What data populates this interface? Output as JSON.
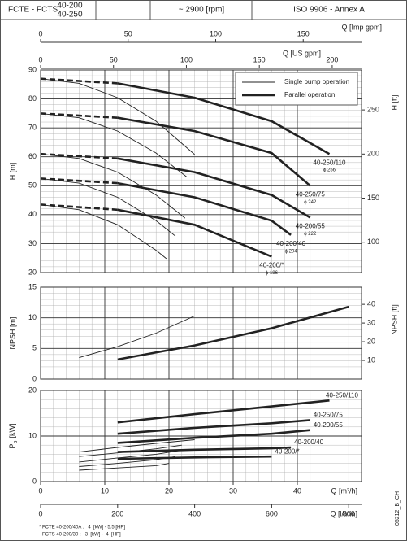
{
  "header": {
    "model": "FCTE - FCTS",
    "sizes": [
      "40-200",
      "40-250"
    ],
    "speed": "~ 2900 [rpm]",
    "standard": "ISO 9906 - Annex A"
  },
  "x_axes": [
    {
      "label": "Q [Imp gpm]",
      "xlim": [
        0,
        183.3
      ],
      "xticks": [
        0,
        50,
        100,
        150
      ],
      "position": "top"
    },
    {
      "label": "Q [US gpm]",
      "xlim": [
        0,
        220.1
      ],
      "xticks": [
        0,
        50,
        100,
        150,
        200
      ],
      "position": "top"
    },
    {
      "label": "Q [m³/h]",
      "xlim": [
        0,
        50
      ],
      "xticks": [
        0,
        10,
        20,
        30,
        40
      ],
      "position": "bottom",
      "grid": true,
      "minor_step": 2
    },
    {
      "label": "Q [l/min]",
      "xlim": [
        0,
        833.3
      ],
      "xticks": [
        0,
        200,
        400,
        600,
        800
      ],
      "position": "bottom"
    }
  ],
  "chart_data": [
    {
      "type": "line",
      "y_label": "H [m]",
      "ylim": [
        20,
        90
      ],
      "yticks": [
        20,
        30,
        40,
        50,
        60,
        70,
        80,
        90
      ],
      "minor_step": 2,
      "y2_label": "H [ft]",
      "y2lim": [
        65.6,
        295.3
      ],
      "y2ticks": [
        100,
        150,
        200,
        250
      ],
      "dashed_to": 12,
      "legend": [
        {
          "name": "Single pump operation",
          "style": "thin"
        },
        {
          "name": "Parallel operation",
          "style": "thick"
        }
      ],
      "series": [
        {
          "style": "thin",
          "x": [
            0,
            6,
            12,
            18,
            24
          ],
          "values": [
            87,
            85.4,
            80.4,
            72.3,
            60.8
          ]
        },
        {
          "style": "thin",
          "x": [
            0,
            6,
            12,
            18,
            22.8
          ],
          "values": [
            75,
            73.5,
            68.9,
            61.3,
            53
          ]
        },
        {
          "style": "thin",
          "x": [
            0,
            6,
            12,
            18,
            22.5
          ],
          "values": [
            61,
            59.4,
            54.7,
            46.8,
            38.8
          ]
        },
        {
          "style": "thin",
          "x": [
            0,
            6,
            12,
            18,
            21
          ],
          "values": [
            52.5,
            50.9,
            46,
            37.9,
            32.6
          ]
        },
        {
          "style": "thin",
          "x": [
            0,
            6,
            12,
            18,
            19.6
          ],
          "values": [
            43.5,
            41.7,
            36.5,
            27.7,
            24.8
          ]
        },
        {
          "style": "thick",
          "label": "40-250/110",
          "sub": "ϕ 256",
          "x": [
            0,
            12,
            24,
            36,
            45
          ],
          "values": [
            87,
            85.4,
            80.4,
            72.3,
            61
          ]
        },
        {
          "style": "thick",
          "label": "40-250/75",
          "sub": "ϕ 242",
          "x": [
            0,
            12,
            24,
            36,
            42
          ],
          "values": [
            75,
            73.5,
            68.9,
            61.3,
            50
          ]
        },
        {
          "style": "thick",
          "label": "40-200/55",
          "sub": "ϕ 222",
          "x": [
            0,
            12,
            24,
            36,
            42
          ],
          "values": [
            61,
            59.4,
            54.7,
            46.8,
            39
          ]
        },
        {
          "style": "thick",
          "label": "40-200/40",
          "sub": "ϕ 204",
          "x": [
            0,
            12,
            24,
            36,
            39
          ],
          "values": [
            52.5,
            50.9,
            46,
            37.9,
            33
          ]
        },
        {
          "style": "thick",
          "label": "40-200/*",
          "sub": "ϕ 186",
          "x": [
            0,
            12,
            24,
            36
          ],
          "values": [
            43.5,
            41.7,
            36.5,
            25.5
          ]
        }
      ]
    },
    {
      "type": "line",
      "y_label": "NPSH [m]",
      "ylim": [
        0,
        15
      ],
      "yticks": [
        0,
        5,
        10,
        15
      ],
      "minor_step": 1,
      "y2_label": "NPSH [ft]",
      "y2lim": [
        0,
        49.2
      ],
      "y2ticks": [
        10,
        20,
        30,
        40
      ],
      "series": [
        {
          "style": "thin",
          "x": [
            6,
            12,
            18,
            24
          ],
          "values": [
            3.5,
            5.3,
            7.5,
            10.3
          ]
        },
        {
          "style": "thick",
          "x": [
            12,
            24,
            36,
            48
          ],
          "values": [
            3.2,
            5.5,
            8.3,
            11.8
          ]
        }
      ]
    },
    {
      "type": "line",
      "y_label": "P",
      "y_label_sub": "p",
      "y_label_unit": "[kW]",
      "ylim": [
        0,
        20
      ],
      "yticks": [
        0,
        10,
        20
      ],
      "minor_step": 2,
      "series": [
        {
          "style": "thin",
          "x": [
            6,
            12,
            18,
            24
          ],
          "values": [
            6.5,
            7.5,
            8.4,
            9.2
          ]
        },
        {
          "style": "thin",
          "x": [
            6,
            12,
            18,
            22
          ],
          "values": [
            5.5,
            6.3,
            7.2,
            8.0
          ]
        },
        {
          "style": "thin",
          "x": [
            6,
            12,
            18,
            22.5
          ],
          "values": [
            4.3,
            5.2,
            6.0,
            7.0
          ]
        },
        {
          "style": "thin",
          "x": [
            6,
            12,
            18,
            21
          ],
          "values": [
            3.3,
            4.0,
            4.8,
            5.5
          ]
        },
        {
          "style": "thin",
          "x": [
            6,
            12,
            18,
            20
          ],
          "values": [
            2.5,
            3.0,
            3.5,
            4.0
          ]
        },
        {
          "style": "thick",
          "label": "40-250/110",
          "x": [
            12,
            24,
            36,
            45
          ],
          "values": [
            13,
            14.8,
            16.5,
            17.8
          ]
        },
        {
          "style": "thick",
          "label": "40-250/75",
          "x": [
            12,
            24,
            36,
            42
          ],
          "values": [
            10.5,
            11.8,
            12.8,
            13.5
          ]
        },
        {
          "style": "thick",
          "label": "40-200/55",
          "x": [
            12,
            24,
            36,
            42
          ],
          "values": [
            8.5,
            9.6,
            10.5,
            11.3
          ]
        },
        {
          "style": "thick",
          "label": "40-200/40",
          "x": [
            12,
            24,
            36,
            39
          ],
          "values": [
            6.5,
            7.0,
            7.3,
            7.5
          ]
        },
        {
          "style": "thick",
          "label": "40-200/*",
          "x": [
            12,
            24,
            36
          ],
          "values": [
            5.0,
            5.3,
            5.5
          ]
        }
      ]
    }
  ],
  "footnotes": [
    "* FCTE 40-200/40A :   4  [kW] - 5.5 [HP]",
    "FCTS 40-200/30 :   3  [kW] -  4  [HP]"
  ],
  "code": "05212_B_CH"
}
